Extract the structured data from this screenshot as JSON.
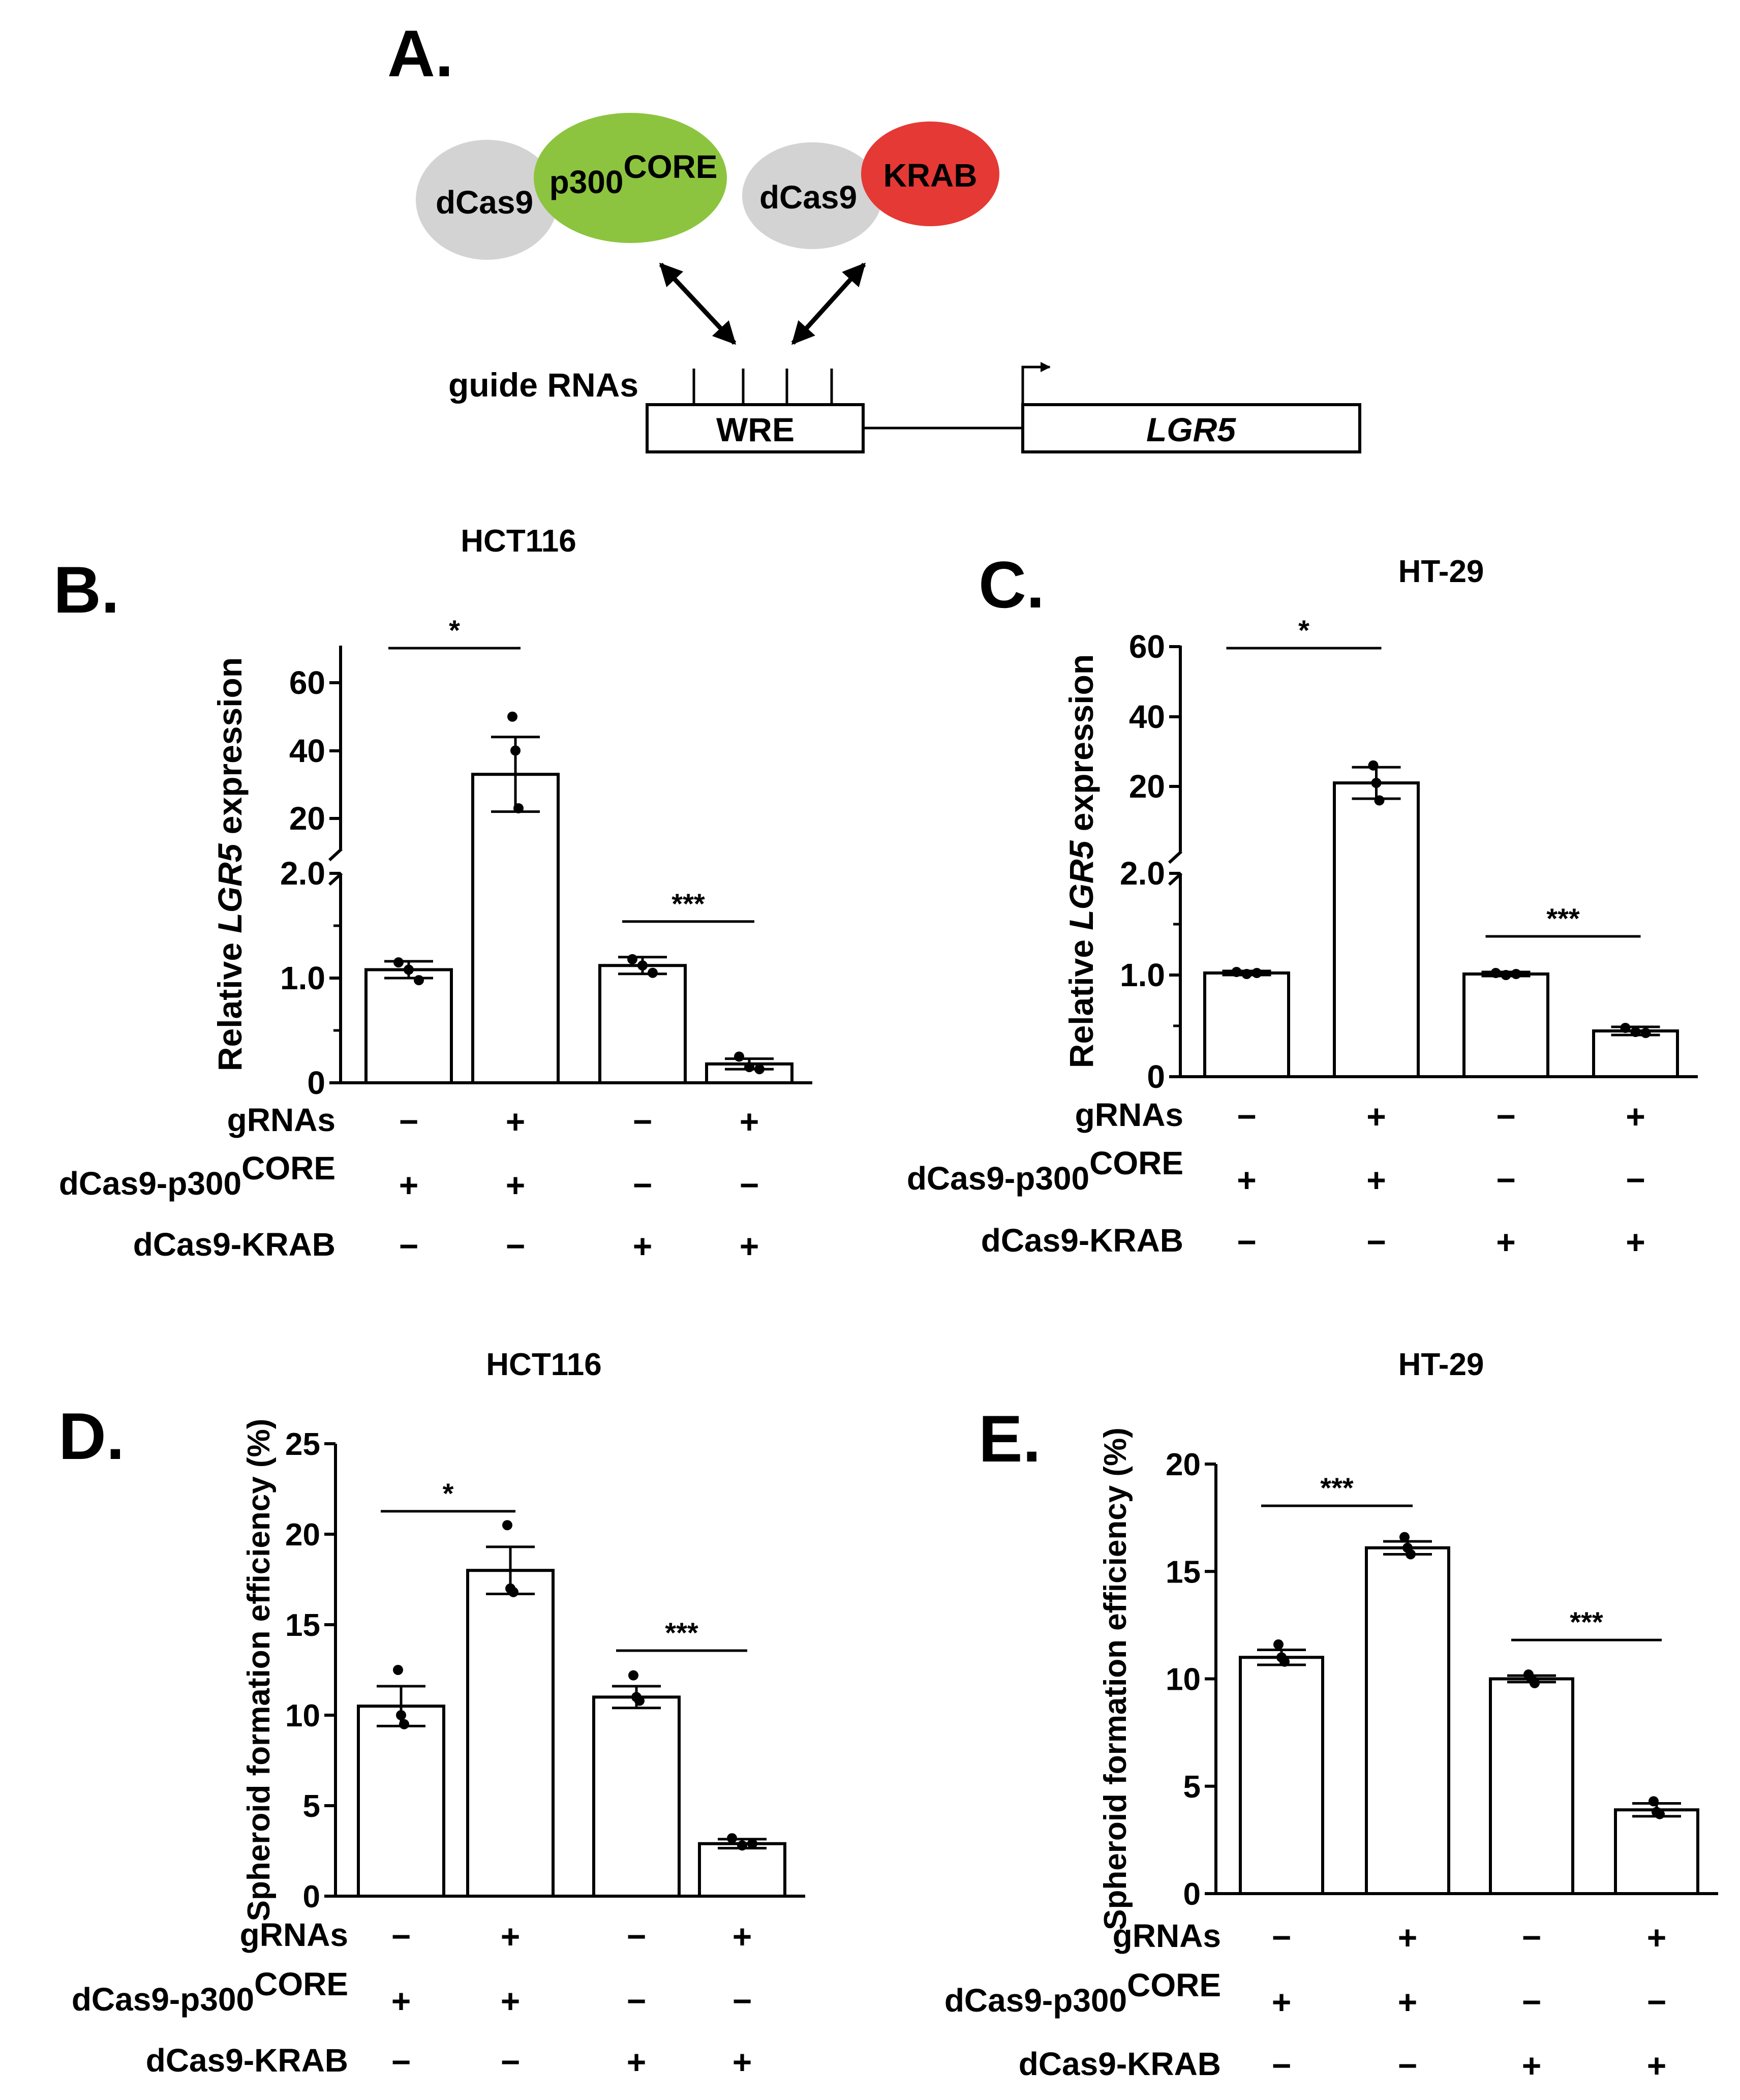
{
  "schematic": {
    "panel_letter": "A.",
    "dcas9_left": "dCas9",
    "p300_prefix": "p300",
    "p300_super": "CORE",
    "dcas9_right": "dCas9",
    "krab": "KRAB",
    "guide_label": "guide RNAs",
    "wre_label": "WRE",
    "gene_label": "LGR5",
    "colors": {
      "dcas9": "#d3d3d3",
      "p300": "#8cc43f",
      "krab": "#e53935"
    }
  },
  "conditions": {
    "row_labels": [
      "gRNAs",
      "dCas9-p300",
      "dCas9-KRAB"
    ],
    "core_super": "CORE",
    "signs": [
      [
        "−",
        "+",
        "−",
        "+"
      ],
      [
        "+",
        "+",
        "−",
        "−"
      ],
      [
        "−",
        "−",
        "+",
        "+"
      ]
    ]
  },
  "chart_data": [
    {
      "panel": "B.",
      "type": "bar",
      "title": "HCT116",
      "ylabel_pre": "Relative ",
      "ylabel_italic": "LGR5",
      "ylabel_post": " expression",
      "broken_axis": true,
      "lower_range": [
        0,
        2.0
      ],
      "upper_range": [
        10,
        60
      ],
      "lower_ticks": [
        "0",
        "1.0",
        "2.0"
      ],
      "upper_ticks": [
        "20",
        "40",
        "60"
      ],
      "values": [
        1.08,
        33,
        1.12,
        0.18
      ],
      "errors": [
        0.08,
        11,
        0.08,
        0.05
      ],
      "points": [
        [
          1.15,
          1.08,
          0.98
        ],
        [
          50,
          40,
          23
        ],
        [
          1.18,
          1.12,
          1.05
        ],
        [
          0.25,
          0.15,
          0.13
        ]
      ],
      "sig": [
        {
          "from": 0,
          "to": 1,
          "label": "*"
        },
        {
          "from": 2,
          "to": 3,
          "label": "***"
        }
      ]
    },
    {
      "panel": "C.",
      "type": "bar",
      "title": "HT-29",
      "ylabel_pre": "Relative ",
      "ylabel_italic": "LGR5",
      "ylabel_post": " expression",
      "broken_axis": true,
      "lower_range": [
        0,
        2.0
      ],
      "upper_range": [
        10,
        60
      ],
      "lower_ticks": [
        "0",
        "1.0",
        "2.0"
      ],
      "upper_ticks": [
        "20",
        "40",
        "60"
      ],
      "values": [
        1.02,
        21,
        1.01,
        0.45
      ],
      "errors": [
        0.02,
        4.5,
        0.02,
        0.04
      ],
      "points": [
        [
          1.03,
          1.01,
          1.02
        ],
        [
          26,
          21,
          16
        ],
        [
          1.02,
          1.0,
          1.01
        ],
        [
          0.48,
          0.44,
          0.43
        ]
      ],
      "sig": [
        {
          "from": 0,
          "to": 1,
          "label": "*"
        },
        {
          "from": 2,
          "to": 3,
          "label": "***"
        }
      ]
    },
    {
      "panel": "D.",
      "type": "bar",
      "title": "HCT116",
      "ylabel": "Spheroid formation efficiency (%)",
      "ylim": [
        0,
        25
      ],
      "ticks": [
        "0",
        "5",
        "10",
        "15",
        "20",
        "25"
      ],
      "values": [
        10.5,
        18,
        11,
        2.9
      ],
      "errors": [
        1.1,
        1.3,
        0.6,
        0.25
      ],
      "points": [
        [
          12.5,
          10,
          9.5
        ],
        [
          20.5,
          17,
          16.8
        ],
        [
          12.2,
          11,
          10.8
        ],
        [
          3.2,
          2.8,
          2.9
        ]
      ],
      "sig": [
        {
          "from": 0,
          "to": 1,
          "label": "*"
        },
        {
          "from": 2,
          "to": 3,
          "label": "***"
        }
      ]
    },
    {
      "panel": "E.",
      "type": "bar",
      "title": "HT-29",
      "ylabel": "Spheroid formation efficiency (%)",
      "ylim": [
        0,
        20
      ],
      "ticks": [
        "0",
        "5",
        "10",
        "15",
        "20"
      ],
      "values": [
        11,
        16.1,
        10,
        3.9
      ],
      "errors": [
        0.35,
        0.3,
        0.15,
        0.3
      ],
      "points": [
        [
          11.6,
          11,
          10.8
        ],
        [
          16.6,
          16.1,
          15.8
        ],
        [
          10.2,
          10,
          9.8
        ],
        [
          4.3,
          3.8,
          3.7
        ]
      ],
      "sig": [
        {
          "from": 0,
          "to": 1,
          "label": "***"
        },
        {
          "from": 2,
          "to": 3,
          "label": "***"
        }
      ]
    }
  ]
}
